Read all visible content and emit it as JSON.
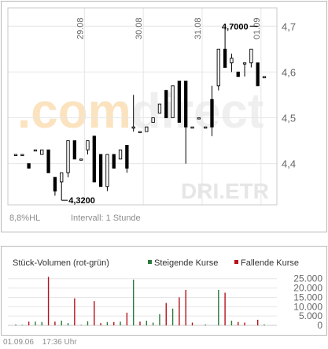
{
  "chart_data": [
    {
      "type": "candlestick",
      "title": "",
      "xlabel": "",
      "ylabel": "",
      "ylim": [
        4.31,
        4.74
      ],
      "yticks": [
        "4,7",
        "4,6",
        "4,5",
        "4,4"
      ],
      "ytick_values": [
        4.7,
        4.6,
        4.5,
        4.4
      ],
      "date_labels": [
        {
          "label": "29.08",
          "index": 10.5
        },
        {
          "label": "30.08",
          "index": 19.5
        },
        {
          "label": "31.08",
          "index": 28.5
        },
        {
          "label": "01.09",
          "index": 37.5
        }
      ],
      "watermark_prefix": ".com",
      "watermark_suffix": "direct",
      "symbol_watermark": "DRI.ETR",
      "stats_left": "8,8%HL",
      "stats_right": "Intervall: 1 Stunde",
      "max_annotation": {
        "label": "4,7000",
        "index": 37,
        "value": 4.7
      },
      "min_annotation": {
        "label": "4,3200",
        "index": 7,
        "value": 4.32
      },
      "candles": [
        {
          "o": 4.42,
          "h": 4.42,
          "l": 4.42,
          "c": 4.42
        },
        {
          "o": 4.42,
          "h": 4.42,
          "l": 4.42,
          "c": 4.42
        },
        {
          "o": 4.4,
          "h": 4.4,
          "l": 4.39,
          "c": 4.39
        },
        {
          "o": 4.43,
          "h": 4.43,
          "l": 4.43,
          "c": 4.43
        },
        {
          "o": 4.42,
          "h": 4.43,
          "l": 4.42,
          "c": 4.43
        },
        {
          "o": 4.43,
          "h": 4.43,
          "l": 4.38,
          "c": 4.38
        },
        {
          "o": 4.37,
          "h": 4.37,
          "l": 4.33,
          "c": 4.34
        },
        {
          "o": 4.36,
          "h": 4.38,
          "l": 4.32,
          "c": 4.38
        },
        {
          "o": 4.38,
          "h": 4.45,
          "l": 4.37,
          "c": 4.45
        },
        {
          "o": 4.45,
          "h": 4.45,
          "l": 4.41,
          "c": 4.41
        },
        {
          "o": 4.41,
          "h": 4.41,
          "l": 4.41,
          "c": 4.41
        },
        {
          "o": 4.43,
          "h": 4.45,
          "l": 4.42,
          "c": 4.45
        },
        {
          "o": 4.46,
          "h": 4.46,
          "l": 4.36,
          "c": 4.36
        },
        {
          "o": 4.42,
          "h": 4.42,
          "l": 4.35,
          "c": 4.35
        },
        {
          "o": 4.35,
          "h": 4.42,
          "l": 4.34,
          "c": 4.42
        },
        {
          "o": 4.42,
          "h": 4.42,
          "l": 4.39,
          "c": 4.39
        },
        {
          "o": 4.41,
          "h": 4.43,
          "l": 4.41,
          "c": 4.43
        },
        {
          "o": 4.44,
          "h": 4.44,
          "l": 4.38,
          "c": 4.39
        },
        {
          "o": 4.48,
          "h": 4.55,
          "l": 4.47,
          "c": 4.48
        },
        {
          "o": 4.47,
          "h": 4.47,
          "l": 4.47,
          "c": 4.47
        },
        {
          "o": 4.47,
          "h": 4.48,
          "l": 4.47,
          "c": 4.48
        },
        {
          "o": 4.49,
          "h": 4.5,
          "l": 4.49,
          "c": 4.5
        },
        {
          "o": 4.51,
          "h": 4.53,
          "l": 4.51,
          "c": 4.53
        },
        {
          "o": 4.56,
          "h": 4.56,
          "l": 4.5,
          "c": 4.5
        },
        {
          "o": 4.5,
          "h": 4.57,
          "l": 4.5,
          "c": 4.57
        },
        {
          "o": 4.58,
          "h": 4.58,
          "l": 4.49,
          "c": 4.49
        },
        {
          "o": 4.58,
          "h": 4.58,
          "l": 4.4,
          "c": 4.48
        },
        {
          "o": 4.48,
          "h": 4.48,
          "l": 4.48,
          "c": 4.48
        },
        {
          "o": 4.5,
          "h": 4.5,
          "l": 4.5,
          "c": 4.5
        },
        {
          "o": 4.48,
          "h": 4.48,
          "l": 4.48,
          "c": 4.48
        },
        {
          "o": 4.54,
          "h": 4.57,
          "l": 4.46,
          "c": 4.48
        },
        {
          "o": 4.57,
          "h": 4.65,
          "l": 4.56,
          "c": 4.65
        },
        {
          "o": 4.65,
          "h": 4.7,
          "l": 4.61,
          "c": 4.61
        },
        {
          "o": 4.62,
          "h": 4.64,
          "l": 4.6,
          "c": 4.63
        },
        {
          "o": 4.6,
          "h": 4.6,
          "l": 4.59,
          "c": 4.59
        },
        {
          "o": 4.62,
          "h": 4.62,
          "l": 4.59,
          "c": 4.62
        },
        {
          "o": 4.62,
          "h": 4.65,
          "l": 4.61,
          "c": 4.65
        },
        {
          "o": 4.62,
          "h": 4.62,
          "l": 4.57,
          "c": 4.57
        },
        {
          "o": 4.59,
          "h": 4.59,
          "l": 4.59,
          "c": 4.59
        }
      ],
      "colors": {
        "grid": "#e6e6e6",
        "frame": "#c8c8c8",
        "candle": "#000000",
        "text": "#666666"
      }
    },
    {
      "type": "bar",
      "title": "Stück-Volumen (rot-grün)",
      "legend": [
        {
          "label": "Steigende Kurse",
          "color": "#2a7a3b"
        },
        {
          "label": "Fallende Kurse",
          "color": "#b5121b"
        }
      ],
      "legend_placement": "top-right",
      "ylim": [
        0,
        27000
      ],
      "yticks": [
        "25.000",
        "20.000",
        "15.000",
        "10.000",
        "5.000",
        "0"
      ],
      "ytick_values": [
        25000,
        20000,
        15000,
        10000,
        5000,
        0
      ],
      "series": [
        {
          "name": "Steigende Kurse",
          "values": [
            500,
            300,
            0,
            2000,
            1800,
            0,
            0,
            2500,
            1200,
            0,
            300,
            2200,
            0,
            0,
            1800,
            0,
            2000,
            0,
            24500,
            0,
            2500,
            1500,
            6000,
            0,
            9000,
            0,
            0,
            0,
            0,
            500,
            0,
            19000,
            0,
            2500,
            0,
            0,
            0,
            0,
            500
          ]
        },
        {
          "name": "Fallende Kurse",
          "values": [
            0,
            0,
            2000,
            0,
            0,
            26000,
            2000,
            0,
            0,
            14500,
            0,
            0,
            13000,
            1200,
            0,
            1800,
            0,
            6800,
            0,
            2000,
            0,
            0,
            0,
            12000,
            0,
            15000,
            19000,
            1500,
            0,
            0,
            0,
            0,
            17500,
            0,
            1800,
            1500,
            0,
            3000,
            0
          ]
        }
      ],
      "colors": {
        "grid": "#e6e6e6",
        "frame": "#c8c8c8",
        "text": "#666666"
      }
    }
  ],
  "footer": {
    "date": "01.09.06",
    "time": "17:36 Uhr"
  }
}
